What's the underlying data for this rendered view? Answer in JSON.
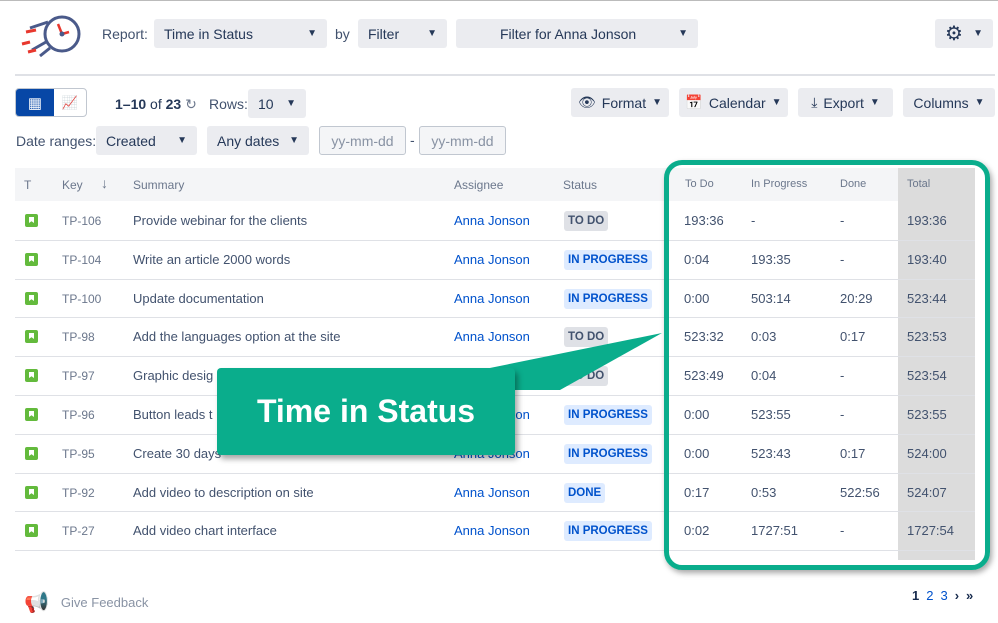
{
  "header": {
    "report_label": "Report:",
    "report_value": "Time in Status",
    "by_label": "by",
    "by_value": "Filter",
    "filter_value": "Filter for Anna Jonson"
  },
  "toolbar": {
    "range_text": "1–10",
    "of_text": "of",
    "total_count": "23",
    "rows_label": "Rows:",
    "rows_value": "10",
    "format": "Format",
    "calendar": "Calendar",
    "export": "Export",
    "columns": "Columns"
  },
  "dates": {
    "label": "Date ranges:",
    "field": "Created",
    "range": "Any dates",
    "from_placeholder": "yy-mm-dd",
    "to_placeholder": "yy-mm-dd",
    "separator": "-"
  },
  "table": {
    "headers": {
      "type": "T",
      "key": "Key",
      "summary": "Summary",
      "assignee": "Assignee",
      "status": "Status",
      "todo": "To Do",
      "inprogress": "In Progress",
      "done": "Done",
      "total": "Total"
    },
    "rows": [
      {
        "key": "TP-106",
        "summary": "Provide webinar for the clients",
        "assignee": "Anna Jonson",
        "status": "TO DO",
        "todo": "193:36",
        "inprogress": "-",
        "done": "-",
        "total": "193:36"
      },
      {
        "key": "TP-104",
        "summary": "Write an article 2000 words",
        "assignee": "Anna Jonson",
        "status": "IN PROGRESS",
        "todo": "0:04",
        "inprogress": "193:35",
        "done": "-",
        "total": "193:40"
      },
      {
        "key": "TP-100",
        "summary": "Update documentation",
        "assignee": "Anna Jonson",
        "status": "IN PROGRESS",
        "todo": "0:00",
        "inprogress": "503:14",
        "done": "20:29",
        "total": "523:44"
      },
      {
        "key": "TP-98",
        "summary": "Add the languages option at the site",
        "assignee": "Anna Jonson",
        "status": "TO DO",
        "todo": "523:32",
        "inprogress": "0:03",
        "done": "0:17",
        "total": "523:53"
      },
      {
        "key": "TP-97",
        "summary": "Graphic desig",
        "assignee": "",
        "status": "TO DO",
        "todo": "523:49",
        "inprogress": "0:04",
        "done": "-",
        "total": "523:54"
      },
      {
        "key": "TP-96",
        "summary": "Button leads t",
        "assignee": "Anna Jonson",
        "status": "IN PROGRESS",
        "todo": "0:00",
        "inprogress": "523:55",
        "done": "-",
        "total": "523:55"
      },
      {
        "key": "TP-95",
        "summary": "Create 30 days",
        "assignee": "Anna Jonson",
        "status": "IN PROGRESS",
        "todo": "0:00",
        "inprogress": "523:43",
        "done": "0:17",
        "total": "524:00"
      },
      {
        "key": "TP-92",
        "summary": "Add video to description on site",
        "assignee": "Anna Jonson",
        "status": "DONE",
        "todo": "0:17",
        "inprogress": "0:53",
        "done": "522:56",
        "total": "524:07"
      },
      {
        "key": "TP-27",
        "summary": "Add video chart interface",
        "assignee": "Anna Jonson",
        "status": "IN PROGRESS",
        "todo": "0:02",
        "inprogress": "1727:51",
        "done": "-",
        "total": "1727:54"
      }
    ]
  },
  "callout": {
    "text": "Time in Status"
  },
  "footer": {
    "feedback": "Give Feedback",
    "pages": [
      "1",
      "2",
      "3"
    ],
    "next": "›",
    "last": "»"
  },
  "colors": {
    "accent": "#0aad8c",
    "primary": "#0052cc",
    "story": "#63ba3c"
  }
}
